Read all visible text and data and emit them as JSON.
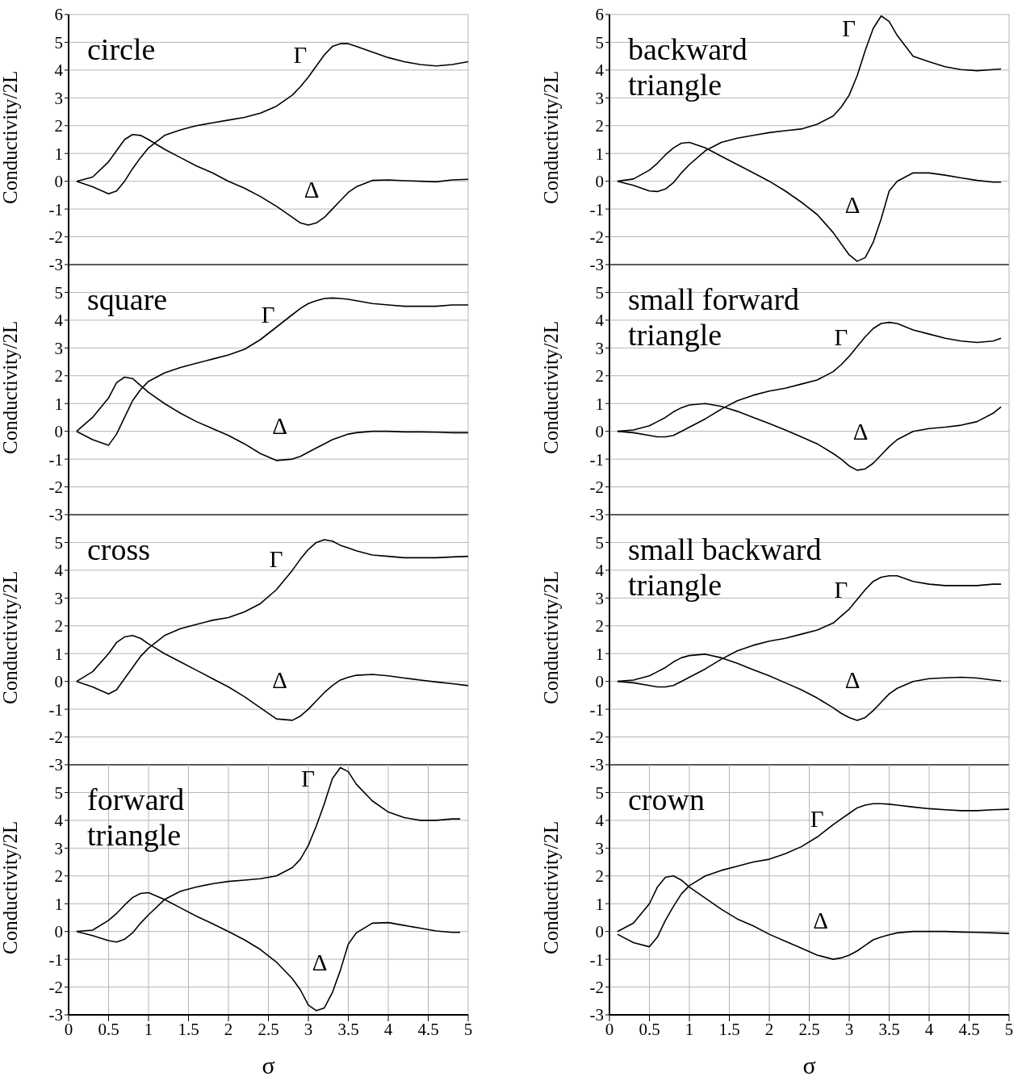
{
  "chart_data": [
    {
      "type": "line",
      "title": "circle",
      "ylabel": "Conductivity/2L",
      "x": [
        0.1,
        0.3,
        0.5,
        0.6,
        0.7,
        0.8,
        0.9,
        1,
        1.2,
        1.4,
        1.6,
        1.8,
        2,
        2.2,
        2.4,
        2.6,
        2.8,
        2.9,
        3,
        3.1,
        3.2,
        3.3,
        3.4,
        3.5,
        3.6,
        3.8,
        4,
        4.2,
        4.4,
        4.6,
        4.8,
        5
      ],
      "xlim": [
        0,
        5
      ],
      "xticks": [
        0,
        0.5,
        1,
        1.5,
        2,
        2.5,
        3,
        3.5,
        4,
        4.5,
        5
      ],
      "ylim": [
        -3,
        6
      ],
      "yticks": [
        -3,
        -2,
        -1,
        0,
        1,
        2,
        3,
        4,
        5,
        6
      ],
      "tick_labels": "y",
      "grid": true,
      "marker": "none",
      "series": [
        {
          "color": "#000000",
          "values": [
            0,
            -0.2,
            -0.45,
            -0.35,
            0,
            0.45,
            0.85,
            1.2,
            1.65,
            1.85,
            2.0,
            2.1,
            2.2,
            2.3,
            2.45,
            2.7,
            3.1,
            3.4,
            3.75,
            4.15,
            4.55,
            4.85,
            4.95,
            4.95,
            4.85,
            4.65,
            4.45,
            4.3,
            4.2,
            4.15,
            4.2,
            4.3
          ]
        },
        {
          "color": "#000000",
          "values": [
            0,
            0.15,
            0.7,
            1.1,
            1.5,
            1.68,
            1.65,
            1.5,
            1.15,
            0.85,
            0.55,
            0.3,
            0,
            -0.25,
            -0.55,
            -0.9,
            -1.3,
            -1.5,
            -1.58,
            -1.5,
            -1.3,
            -1.0,
            -0.7,
            -0.4,
            -0.2,
            0.03,
            0.05,
            0.02,
            0,
            -0.02,
            0.05,
            0.07
          ]
        }
      ],
      "annotations": [
        "Γ",
        "Δ"
      ]
    },
    {
      "type": "line",
      "title": "backward\ntriangle",
      "ylabel": "Conductivity/2L",
      "x": [
        0.1,
        0.3,
        0.5,
        0.6,
        0.7,
        0.8,
        0.9,
        1,
        1.2,
        1.4,
        1.6,
        1.8,
        2,
        2.2,
        2.4,
        2.6,
        2.8,
        2.9,
        3,
        3.1,
        3.2,
        3.3,
        3.4,
        3.5,
        3.6,
        3.8,
        4,
        4.2,
        4.4,
        4.6,
        4.8,
        4.9
      ],
      "xlim": [
        0,
        5
      ],
      "xticks": [
        0,
        0.5,
        1,
        1.5,
        2,
        2.5,
        3,
        3.5,
        4,
        4.5,
        5
      ],
      "ylim": [
        -3,
        6
      ],
      "yticks": [
        -3,
        -2,
        -1,
        0,
        1,
        2,
        3,
        4,
        5,
        6
      ],
      "tick_labels": "y",
      "grid": true,
      "marker": "none",
      "series": [
        {
          "color": "#000000",
          "values": [
            0,
            -0.15,
            -0.35,
            -0.37,
            -0.28,
            -0.05,
            0.3,
            0.6,
            1.1,
            1.4,
            1.55,
            1.65,
            1.75,
            1.82,
            1.88,
            2.05,
            2.35,
            2.67,
            3.1,
            3.8,
            4.7,
            5.5,
            5.95,
            5.75,
            5.25,
            4.5,
            4.3,
            4.12,
            4.02,
            3.98,
            4.02,
            4.04
          ]
        },
        {
          "color": "#000000",
          "values": [
            0,
            0.08,
            0.4,
            0.65,
            0.95,
            1.2,
            1.37,
            1.4,
            1.2,
            0.9,
            0.6,
            0.3,
            0,
            -0.35,
            -0.75,
            -1.2,
            -1.85,
            -2.25,
            -2.65,
            -2.88,
            -2.75,
            -2.2,
            -1.35,
            -0.35,
            0,
            0.3,
            0.3,
            0.22,
            0.12,
            0.03,
            -0.03,
            -0.03
          ]
        }
      ],
      "annotations": [
        "Γ",
        "Δ"
      ]
    },
    {
      "type": "line",
      "title": "square",
      "ylabel": "Conductivity/2L",
      "x": [
        0.1,
        0.3,
        0.5,
        0.6,
        0.7,
        0.8,
        0.9,
        1,
        1.2,
        1.4,
        1.6,
        1.8,
        2,
        2.2,
        2.4,
        2.6,
        2.8,
        2.9,
        3,
        3.1,
        3.2,
        3.3,
        3.4,
        3.5,
        3.6,
        3.8,
        4,
        4.2,
        4.4,
        4.6,
        4.8,
        5
      ],
      "xlim": [
        0,
        5
      ],
      "xticks": [
        0,
        0.5,
        1,
        1.5,
        2,
        2.5,
        3,
        3.5,
        4,
        4.5,
        5
      ],
      "ylim": [
        -3,
        6
      ],
      "yticks": [
        -3,
        -2,
        -1,
        0,
        1,
        2,
        3,
        4,
        5
      ],
      "tick_labels": "y",
      "grid": true,
      "marker": "none",
      "series": [
        {
          "color": "#000000",
          "values": [
            0,
            -0.3,
            -0.5,
            -0.1,
            0.5,
            1.1,
            1.5,
            1.8,
            2.1,
            2.3,
            2.45,
            2.6,
            2.75,
            2.95,
            3.3,
            3.75,
            4.2,
            4.42,
            4.6,
            4.7,
            4.78,
            4.8,
            4.78,
            4.75,
            4.7,
            4.6,
            4.55,
            4.5,
            4.5,
            4.5,
            4.55,
            4.55
          ]
        },
        {
          "color": "#000000",
          "values": [
            0,
            0.5,
            1.2,
            1.75,
            1.95,
            1.9,
            1.65,
            1.4,
            1.0,
            0.65,
            0.35,
            0.1,
            -0.15,
            -0.45,
            -0.8,
            -1.05,
            -1.0,
            -0.9,
            -0.75,
            -0.6,
            -0.45,
            -0.3,
            -0.2,
            -0.1,
            -0.05,
            0,
            0,
            -0.02,
            -0.02,
            -0.03,
            -0.05,
            -0.05
          ]
        }
      ],
      "annotations": [
        "Γ",
        "Δ"
      ]
    },
    {
      "type": "line",
      "title": "small forward\ntriangle",
      "ylabel": "Conductivity/2L",
      "x": [
        0.1,
        0.3,
        0.5,
        0.6,
        0.7,
        0.8,
        0.9,
        1,
        1.2,
        1.4,
        1.6,
        1.8,
        2,
        2.2,
        2.4,
        2.6,
        2.8,
        2.9,
        3,
        3.1,
        3.2,
        3.3,
        3.4,
        3.5,
        3.6,
        3.8,
        4,
        4.2,
        4.4,
        4.6,
        4.8,
        4.9
      ],
      "xlim": [
        0,
        5
      ],
      "xticks": [
        0,
        0.5,
        1,
        1.5,
        2,
        2.5,
        3,
        3.5,
        4,
        4.5,
        5
      ],
      "ylim": [
        -3,
        6
      ],
      "yticks": [
        -3,
        -2,
        -1,
        0,
        1,
        2,
        3,
        4,
        5
      ],
      "tick_labels": "y",
      "grid": true,
      "marker": "none",
      "series": [
        {
          "color": "#000000",
          "values": [
            0,
            -0.05,
            -0.15,
            -0.2,
            -0.2,
            -0.15,
            0,
            0.15,
            0.45,
            0.8,
            1.1,
            1.3,
            1.45,
            1.55,
            1.7,
            1.85,
            2.15,
            2.4,
            2.7,
            3.05,
            3.4,
            3.7,
            3.88,
            3.92,
            3.88,
            3.65,
            3.5,
            3.35,
            3.25,
            3.2,
            3.25,
            3.35
          ]
        },
        {
          "color": "#000000",
          "values": [
            0,
            0.05,
            0.2,
            0.35,
            0.5,
            0.7,
            0.85,
            0.95,
            1.0,
            0.9,
            0.72,
            0.5,
            0.28,
            0.05,
            -0.2,
            -0.45,
            -0.8,
            -1.0,
            -1.25,
            -1.4,
            -1.35,
            -1.15,
            -0.85,
            -0.55,
            -0.3,
            0,
            0.1,
            0.15,
            0.22,
            0.35,
            0.65,
            0.88
          ]
        }
      ],
      "annotations": [
        "Γ",
        "Δ"
      ]
    },
    {
      "type": "line",
      "title": "cross",
      "ylabel": "Conductivity/2L",
      "x": [
        0.1,
        0.3,
        0.5,
        0.6,
        0.7,
        0.8,
        0.9,
        1,
        1.2,
        1.4,
        1.6,
        1.8,
        2,
        2.2,
        2.4,
        2.6,
        2.8,
        2.9,
        3,
        3.1,
        3.2,
        3.3,
        3.4,
        3.5,
        3.6,
        3.8,
        4,
        4.2,
        4.4,
        4.6,
        4.8,
        5
      ],
      "xlim": [
        0,
        5
      ],
      "xticks": [
        0,
        0.5,
        1,
        1.5,
        2,
        2.5,
        3,
        3.5,
        4,
        4.5,
        5
      ],
      "ylim": [
        -3,
        6
      ],
      "yticks": [
        -3,
        -2,
        -1,
        0,
        1,
        2,
        3,
        4,
        5
      ],
      "tick_labels": "y",
      "grid": true,
      "marker": "none",
      "series": [
        {
          "color": "#000000",
          "values": [
            0,
            -0.2,
            -0.45,
            -0.3,
            0.1,
            0.5,
            0.9,
            1.2,
            1.65,
            1.9,
            2.05,
            2.2,
            2.3,
            2.5,
            2.8,
            3.3,
            4.0,
            4.4,
            4.75,
            5.0,
            5.1,
            5.05,
            4.9,
            4.8,
            4.7,
            4.55,
            4.5,
            4.45,
            4.45,
            4.45,
            4.48,
            4.5
          ]
        },
        {
          "color": "#000000",
          "values": [
            0,
            0.35,
            1.0,
            1.4,
            1.6,
            1.65,
            1.55,
            1.35,
            1.0,
            0.7,
            0.4,
            0.1,
            -0.2,
            -0.55,
            -0.95,
            -1.35,
            -1.4,
            -1.25,
            -1.0,
            -0.7,
            -0.4,
            -0.15,
            0.05,
            0.15,
            0.22,
            0.25,
            0.2,
            0.12,
            0.05,
            -0.02,
            -0.08,
            -0.15
          ]
        }
      ],
      "annotations": [
        "Γ",
        "Δ"
      ]
    },
    {
      "type": "line",
      "title": "small backward\ntriangle",
      "ylabel": "Conductivity/2L",
      "x": [
        0.1,
        0.3,
        0.5,
        0.6,
        0.7,
        0.8,
        0.9,
        1,
        1.2,
        1.4,
        1.6,
        1.8,
        2,
        2.2,
        2.4,
        2.6,
        2.8,
        2.9,
        3,
        3.1,
        3.2,
        3.3,
        3.4,
        3.5,
        3.6,
        3.8,
        4,
        4.2,
        4.4,
        4.6,
        4.8,
        4.9
      ],
      "xlim": [
        0,
        5
      ],
      "xticks": [
        0,
        0.5,
        1,
        1.5,
        2,
        2.5,
        3,
        3.5,
        4,
        4.5,
        5
      ],
      "ylim": [
        -3,
        6
      ],
      "yticks": [
        -3,
        -2,
        -1,
        0,
        1,
        2,
        3,
        4,
        5
      ],
      "tick_labels": "y",
      "grid": true,
      "marker": "none",
      "series": [
        {
          "color": "#000000",
          "values": [
            0,
            -0.05,
            -0.15,
            -0.2,
            -0.2,
            -0.15,
            0,
            0.15,
            0.45,
            0.8,
            1.1,
            1.3,
            1.45,
            1.55,
            1.7,
            1.85,
            2.1,
            2.35,
            2.6,
            2.95,
            3.3,
            3.6,
            3.75,
            3.8,
            3.8,
            3.6,
            3.5,
            3.45,
            3.45,
            3.45,
            3.5,
            3.5
          ]
        },
        {
          "color": "#000000",
          "values": [
            0,
            0.05,
            0.2,
            0.35,
            0.5,
            0.7,
            0.85,
            0.93,
            0.98,
            0.85,
            0.65,
            0.42,
            0.2,
            -0.05,
            -0.3,
            -0.6,
            -0.95,
            -1.15,
            -1.3,
            -1.4,
            -1.3,
            -1.05,
            -0.75,
            -0.45,
            -0.25,
            0,
            0.1,
            0.13,
            0.15,
            0.12,
            0.05,
            0.02
          ]
        }
      ],
      "annotations": [
        "Γ",
        "Δ"
      ]
    },
    {
      "type": "line",
      "title": "forward\ntriangle",
      "xlabel": "σ",
      "ylabel": "Conductivity/2L",
      "x": [
        0.1,
        0.3,
        0.5,
        0.6,
        0.7,
        0.8,
        0.9,
        1,
        1.2,
        1.4,
        1.6,
        1.8,
        2,
        2.2,
        2.4,
        2.6,
        2.8,
        2.9,
        3,
        3.1,
        3.2,
        3.3,
        3.4,
        3.5,
        3.6,
        3.8,
        4,
        4.2,
        4.4,
        4.6,
        4.8,
        4.9
      ],
      "xlim": [
        0,
        5
      ],
      "xticks": [
        0,
        0.5,
        1,
        1.5,
        2,
        2.5,
        3,
        3.5,
        4,
        4.5,
        5
      ],
      "ylim": [
        -3,
        6
      ],
      "yticks": [
        -3,
        -2,
        -1,
        0,
        1,
        2,
        3,
        4,
        5
      ],
      "grid": true,
      "marker": "none",
      "series": [
        {
          "color": "#000000",
          "values": [
            0,
            -0.15,
            -0.33,
            -0.38,
            -0.28,
            -0.05,
            0.3,
            0.6,
            1.15,
            1.45,
            1.6,
            1.72,
            1.8,
            1.85,
            1.9,
            2.0,
            2.3,
            2.6,
            3.1,
            3.8,
            4.6,
            5.5,
            5.9,
            5.75,
            5.3,
            4.7,
            4.3,
            4.1,
            4.0,
            4.0,
            4.05,
            4.05
          ]
        },
        {
          "color": "#000000",
          "values": [
            0,
            0.05,
            0.4,
            0.65,
            0.95,
            1.22,
            1.37,
            1.4,
            1.15,
            0.85,
            0.55,
            0.28,
            0,
            -0.3,
            -0.65,
            -1.1,
            -1.7,
            -2.1,
            -2.65,
            -2.85,
            -2.75,
            -2.2,
            -1.4,
            -0.45,
            -0.05,
            0.3,
            0.32,
            0.22,
            0.12,
            0.02,
            -0.03,
            -0.03
          ]
        }
      ],
      "annotations": [
        "Γ",
        "Δ"
      ]
    },
    {
      "type": "line",
      "title": "crown",
      "xlabel": "σ",
      "ylabel": "Conductivity/2L",
      "x": [
        0.1,
        0.3,
        0.5,
        0.6,
        0.7,
        0.8,
        0.9,
        1,
        1.2,
        1.4,
        1.6,
        1.8,
        2,
        2.2,
        2.4,
        2.6,
        2.8,
        2.9,
        3,
        3.1,
        3.2,
        3.3,
        3.4,
        3.5,
        3.6,
        3.8,
        4,
        4.2,
        4.4,
        4.6,
        4.8,
        5
      ],
      "xlim": [
        0,
        5
      ],
      "xticks": [
        0,
        0.5,
        1,
        1.5,
        2,
        2.5,
        3,
        3.5,
        4,
        4.5,
        5
      ],
      "ylim": [
        -3,
        6
      ],
      "yticks": [
        -3,
        -2,
        -1,
        0,
        1,
        2,
        3,
        4,
        5
      ],
      "grid": true,
      "marker": "none",
      "series": [
        {
          "color": "#000000",
          "values": [
            -0.1,
            -0.4,
            -0.55,
            -0.2,
            0.4,
            0.9,
            1.35,
            1.65,
            2.0,
            2.2,
            2.35,
            2.5,
            2.6,
            2.8,
            3.05,
            3.4,
            3.85,
            4.05,
            4.25,
            4.45,
            4.55,
            4.6,
            4.6,
            4.58,
            4.55,
            4.48,
            4.42,
            4.38,
            4.35,
            4.35,
            4.38,
            4.4
          ]
        },
        {
          "color": "#000000",
          "values": [
            0,
            0.3,
            1.0,
            1.6,
            1.95,
            2.0,
            1.85,
            1.6,
            1.2,
            0.8,
            0.45,
            0.2,
            -0.1,
            -0.35,
            -0.6,
            -0.85,
            -1.0,
            -0.95,
            -0.85,
            -0.7,
            -0.5,
            -0.3,
            -0.2,
            -0.12,
            -0.05,
            0,
            0,
            0,
            -0.02,
            -0.03,
            -0.05,
            -0.07
          ]
        }
      ],
      "annotations": [
        "Γ",
        "Δ"
      ]
    }
  ]
}
